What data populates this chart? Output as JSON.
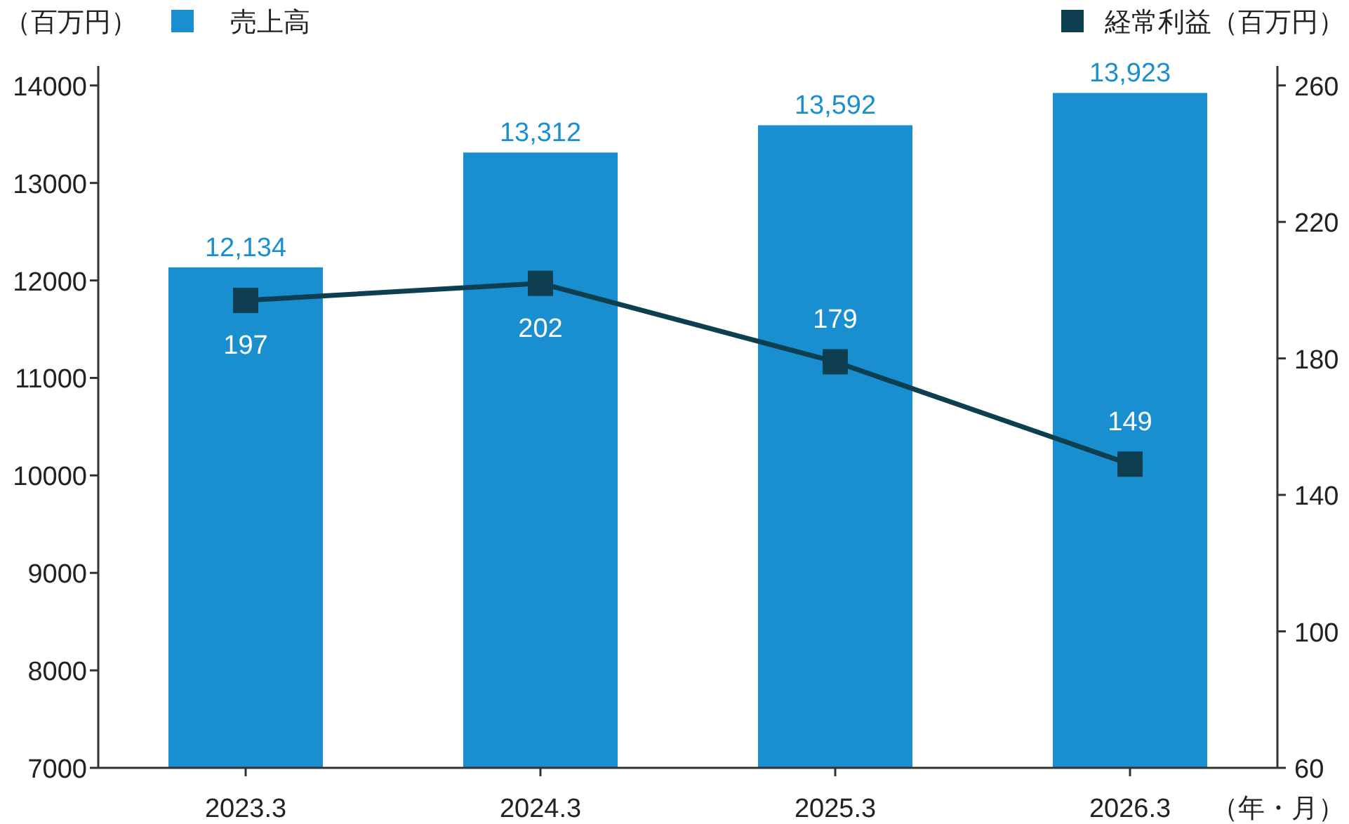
{
  "chart_data": {
    "type": "bar",
    "categories": [
      "2023.3",
      "2024.3",
      "2025.3",
      "2026.3"
    ],
    "series": [
      {
        "name": "売上高",
        "color": "#1a8fd0",
        "values": [
          12134,
          13312,
          13592,
          13923
        ],
        "value_labels": [
          "12,134",
          "13,312",
          "13,592",
          "13,923"
        ]
      },
      {
        "name": "経常利益（百万円）",
        "type": "line",
        "axis": "y2",
        "color": "#0d3f50",
        "values": [
          197,
          202,
          179,
          149
        ]
      }
    ],
    "ylabel": "（百万円）",
    "xlabel": "（年・月）",
    "ylim": [
      7000,
      14200
    ],
    "yticks": [
      7000,
      8000,
      9000,
      10000,
      11000,
      12000,
      13000,
      14000
    ],
    "y2lim": [
      60,
      265.7
    ],
    "y2ticks": [
      60,
      100,
      140,
      180,
      220,
      260
    ],
    "data_labels": true,
    "legend": "top",
    "marker": "square",
    "grid": false
  }
}
